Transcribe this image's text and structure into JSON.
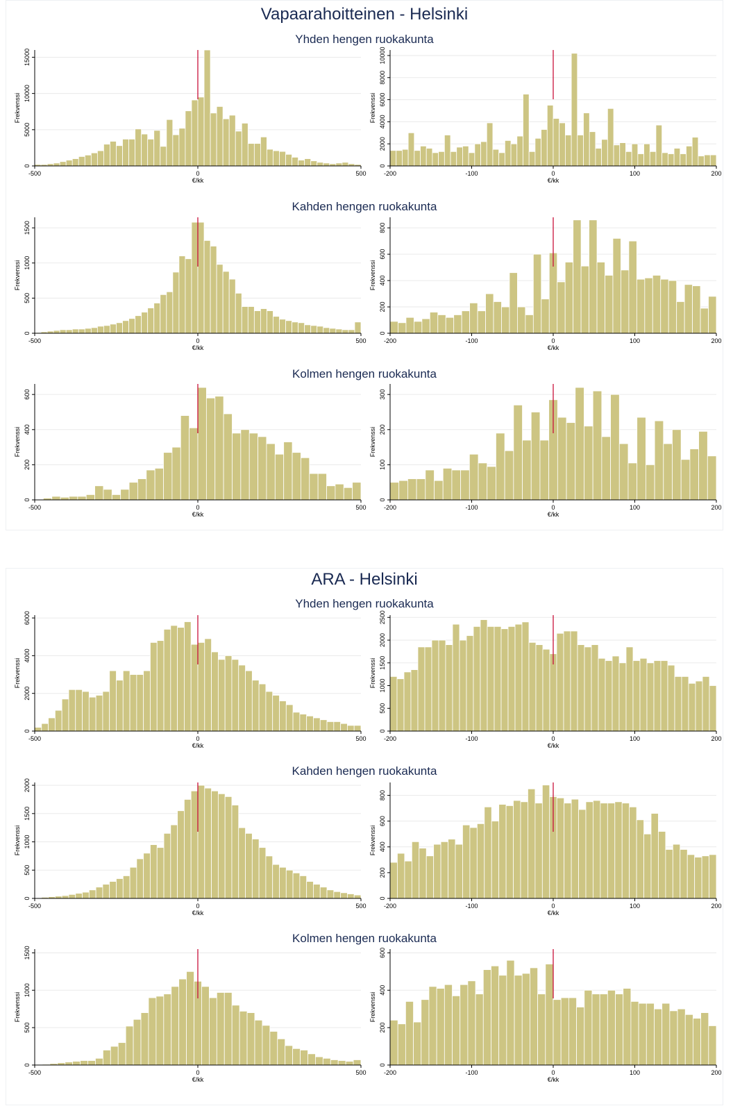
{
  "colors": {
    "bar_fill": "#cdc583",
    "bar_stroke": "#ffffff",
    "marker": "#c8103a",
    "grid": "#eaeaea",
    "title": "#1a2a52"
  },
  "panels": [
    {
      "title": "Vapaarahoitteinen - Helsinki",
      "rows": [
        {
          "title": "Yhden hengen ruokakunta"
        },
        {
          "title": "Kahden hengen ruokakunta"
        },
        {
          "title": "Kolmen hengen ruokakunta"
        }
      ]
    },
    {
      "title": "ARA - Helsinki",
      "rows": [
        {
          "title": "Yhden hengen ruokakunta"
        },
        {
          "title": "Kahden hengen ruokakunta"
        },
        {
          "title": "Kolmen hengen ruokakunta"
        }
      ]
    }
  ],
  "chart_data": [
    {
      "panel": 0,
      "row": 0,
      "col": 0,
      "type": "bar",
      "xlabel": "€/kk",
      "ylabel": "Frekvenssi",
      "xlim": [
        -500,
        500
      ],
      "ylim": [
        0,
        16000
      ],
      "xticks": [
        -500,
        0,
        500
      ],
      "yticks": [
        0,
        5000,
        10000,
        15000
      ],
      "marker_x": 0,
      "values": [
        200,
        200,
        300,
        400,
        600,
        800,
        1000,
        1300,
        1500,
        1800,
        2100,
        3000,
        3400,
        2800,
        3700,
        3700,
        5100,
        4400,
        3700,
        4900,
        2700,
        6400,
        4300,
        5200,
        7600,
        9100,
        9500,
        16000,
        7300,
        8200,
        6500,
        7000,
        4800,
        5900,
        3100,
        3100,
        4000,
        2300,
        2100,
        2000,
        1600,
        1200,
        800,
        1000,
        700,
        500,
        400,
        300,
        400,
        500,
        300,
        200
      ]
    },
    {
      "panel": 0,
      "row": 0,
      "col": 1,
      "type": "bar",
      "xlabel": "€/kk",
      "ylabel": "Frekvenssi",
      "xlim": [
        -200,
        200
      ],
      "ylim": [
        0,
        10500
      ],
      "xticks": [
        -200,
        -100,
        0,
        100,
        200
      ],
      "yticks": [
        0,
        2000,
        4000,
        6000,
        8000,
        10000
      ],
      "marker_x": 0,
      "values": [
        1400,
        1400,
        1500,
        3000,
        1400,
        1800,
        1600,
        1200,
        1300,
        2800,
        1300,
        1700,
        1800,
        1200,
        2000,
        2200,
        3900,
        1500,
        1200,
        2300,
        2000,
        2700,
        6500,
        1300,
        2500,
        3300,
        5500,
        4300,
        3900,
        2800,
        10200,
        2800,
        4800,
        3100,
        1600,
        2400,
        5200,
        1900,
        2100,
        1300,
        2000,
        1100,
        2000,
        1300,
        3700,
        1200,
        1100,
        1600,
        1100,
        1800,
        2600,
        900,
        1000,
        1000
      ]
    },
    {
      "panel": 0,
      "row": 1,
      "col": 0,
      "type": "bar",
      "xlabel": "€/kk",
      "ylabel": "Frekvenssi",
      "xlim": [
        -500,
        500
      ],
      "ylim": [
        0,
        1650
      ],
      "xticks": [
        -500,
        0,
        500
      ],
      "yticks": [
        0,
        500,
        1000,
        1500
      ],
      "marker_x": 0,
      "values": [
        10,
        20,
        30,
        40,
        50,
        50,
        60,
        60,
        70,
        80,
        100,
        110,
        130,
        150,
        180,
        210,
        250,
        300,
        360,
        430,
        550,
        590,
        870,
        1100,
        1060,
        1580,
        1580,
        1320,
        1240,
        980,
        880,
        770,
        570,
        380,
        380,
        320,
        350,
        320,
        240,
        200,
        180,
        160,
        150,
        120,
        110,
        100,
        80,
        70,
        60,
        50,
        50,
        160
      ]
    },
    {
      "panel": 0,
      "row": 1,
      "col": 1,
      "type": "bar",
      "xlabel": "€/kk",
      "ylabel": "Frekvenssi",
      "xlim": [
        -200,
        200
      ],
      "ylim": [
        0,
        880
      ],
      "xticks": [
        -200,
        -100,
        0,
        100,
        200
      ],
      "yticks": [
        0,
        200,
        400,
        600,
        800
      ],
      "marker_x": 0,
      "values": [
        90,
        80,
        120,
        90,
        110,
        160,
        140,
        120,
        140,
        170,
        230,
        170,
        300,
        240,
        200,
        460,
        200,
        140,
        600,
        260,
        610,
        390,
        540,
        860,
        510,
        860,
        540,
        440,
        720,
        480,
        700,
        410,
        420,
        440,
        410,
        400,
        240,
        370,
        360,
        190,
        280
      ]
    },
    {
      "panel": 0,
      "row": 2,
      "col": 0,
      "type": "bar",
      "xlabel": "€/kk",
      "ylabel": "Frekvenssi",
      "xlim": [
        -500,
        500
      ],
      "ylim": [
        0,
        660
      ],
      "xticks": [
        -500,
        0,
        500
      ],
      "yticks": [
        0,
        200,
        400,
        600
      ],
      "marker_x": 0,
      "values": [
        0,
        10,
        20,
        15,
        20,
        20,
        30,
        80,
        60,
        30,
        60,
        100,
        120,
        170,
        180,
        270,
        300,
        480,
        410,
        640,
        580,
        590,
        490,
        380,
        400,
        380,
        360,
        320,
        260,
        330,
        270,
        240,
        150,
        150,
        80,
        90,
        70,
        100
      ]
    },
    {
      "panel": 0,
      "row": 2,
      "col": 1,
      "type": "bar",
      "xlabel": "€/kk",
      "ylabel": "Frekvenssi",
      "xlim": [
        -200,
        200
      ],
      "ylim": [
        0,
        330
      ],
      "xticks": [
        -200,
        -100,
        0,
        100,
        200
      ],
      "yticks": [
        0,
        100,
        200,
        300
      ],
      "marker_x": 0,
      "values": [
        50,
        55,
        60,
        60,
        85,
        55,
        90,
        85,
        85,
        130,
        105,
        95,
        190,
        140,
        270,
        170,
        250,
        170,
        285,
        235,
        220,
        320,
        210,
        310,
        180,
        300,
        160,
        105,
        235,
        100,
        225,
        160,
        200,
        115,
        145,
        195,
        125
      ]
    },
    {
      "panel": 1,
      "row": 0,
      "col": 0,
      "type": "bar",
      "xlabel": "€/kk",
      "ylabel": "Frekvenssi",
      "xlim": [
        -500,
        500
      ],
      "ylim": [
        0,
        6150
      ],
      "xticks": [
        -500,
        0,
        500
      ],
      "yticks": [
        0,
        2000,
        4000,
        6000
      ],
      "marker_x": 0,
      "values": [
        200,
        400,
        700,
        1100,
        1700,
        2200,
        2200,
        2100,
        1800,
        1900,
        2100,
        3200,
        2700,
        3200,
        3000,
        3000,
        3200,
        4700,
        4800,
        5400,
        5600,
        5500,
        5800,
        4600,
        4700,
        4900,
        4200,
        3800,
        4000,
        3800,
        3500,
        3200,
        2700,
        2500,
        2100,
        1900,
        1600,
        1400,
        1000,
        900,
        800,
        700,
        600,
        500,
        500,
        400,
        300,
        300
      ]
    },
    {
      "panel": 1,
      "row": 0,
      "col": 1,
      "type": "bar",
      "xlabel": "€/kk",
      "ylabel": "Frekvenssi",
      "xlim": [
        -200,
        200
      ],
      "ylim": [
        0,
        2550
      ],
      "xticks": [
        -200,
        -100,
        0,
        100,
        200
      ],
      "yticks": [
        0,
        500,
        1000,
        1500,
        2000,
        2500
      ],
      "marker_x": 0,
      "values": [
        1200,
        1150,
        1300,
        1350,
        1850,
        1850,
        2000,
        2000,
        1900,
        2350,
        2000,
        2100,
        2300,
        2450,
        2300,
        2300,
        2250,
        2300,
        2350,
        2400,
        1950,
        1900,
        1800,
        1700,
        2150,
        2200,
        2200,
        1900,
        1850,
        1900,
        1600,
        1550,
        1650,
        1500,
        1850,
        1550,
        1600,
        1500,
        1550,
        1550,
        1450,
        1200,
        1200,
        1050,
        1100,
        1200,
        1000
      ]
    },
    {
      "panel": 1,
      "row": 1,
      "col": 0,
      "type": "bar",
      "xlabel": "€/kk",
      "ylabel": "Frekvenssi",
      "xlim": [
        -500,
        500
      ],
      "ylim": [
        0,
        2050
      ],
      "xticks": [
        -500,
        0,
        500
      ],
      "yticks": [
        0,
        500,
        1000,
        1500,
        2000
      ],
      "marker_x": 0,
      "values": [
        10,
        20,
        30,
        40,
        50,
        70,
        90,
        110,
        150,
        200,
        250,
        300,
        350,
        400,
        550,
        700,
        800,
        950,
        900,
        1150,
        1300,
        1550,
        1750,
        1900,
        2000,
        1950,
        1900,
        1850,
        1800,
        1650,
        1250,
        1150,
        1050,
        900,
        750,
        600,
        550,
        500,
        450,
        400,
        300,
        250,
        200,
        150,
        120,
        100,
        80,
        60
      ]
    },
    {
      "panel": 1,
      "row": 1,
      "col": 1,
      "type": "bar",
      "xlabel": "€/kk",
      "ylabel": "Frekvenssi",
      "xlim": [
        -200,
        200
      ],
      "ylim": [
        0,
        900
      ],
      "xticks": [
        -200,
        -100,
        0,
        100,
        200
      ],
      "yticks": [
        0,
        200,
        400,
        600,
        800
      ],
      "marker_x": 0,
      "values": [
        280,
        350,
        290,
        440,
        390,
        330,
        420,
        440,
        460,
        420,
        570,
        550,
        580,
        710,
        600,
        730,
        720,
        760,
        750,
        850,
        740,
        880,
        790,
        780,
        740,
        770,
        690,
        750,
        760,
        740,
        740,
        750,
        740,
        710,
        610,
        500,
        660,
        520,
        380,
        420,
        380,
        340,
        320,
        330,
        340
      ]
    },
    {
      "panel": 1,
      "row": 2,
      "col": 0,
      "type": "bar",
      "xlabel": "€/kk",
      "ylabel": "Frekvenssi",
      "xlim": [
        -500,
        500
      ],
      "ylim": [
        0,
        1550
      ],
      "xticks": [
        -500,
        0,
        500
      ],
      "yticks": [
        0,
        500,
        1000,
        1500
      ],
      "marker_x": 0,
      "values": [
        5,
        10,
        20,
        30,
        40,
        50,
        60,
        60,
        90,
        200,
        250,
        300,
        520,
        610,
        700,
        900,
        920,
        950,
        1050,
        1150,
        1250,
        1120,
        1050,
        900,
        970,
        970,
        800,
        720,
        700,
        600,
        530,
        450,
        350,
        260,
        220,
        200,
        150,
        110,
        90,
        70,
        60,
        50,
        70
      ]
    },
    {
      "panel": 1,
      "row": 2,
      "col": 1,
      "type": "bar",
      "xlabel": "€/kk",
      "ylabel": "Frekvenssi",
      "xlim": [
        -200,
        200
      ],
      "ylim": [
        0,
        620
      ],
      "xticks": [
        -200,
        -100,
        0,
        100,
        200
      ],
      "yticks": [
        0,
        200,
        400,
        600
      ],
      "marker_x": 0,
      "values": [
        240,
        220,
        340,
        230,
        350,
        420,
        410,
        430,
        370,
        430,
        450,
        380,
        510,
        530,
        480,
        560,
        480,
        490,
        520,
        380,
        540,
        350,
        360,
        360,
        310,
        400,
        380,
        380,
        400,
        380,
        410,
        340,
        330,
        330,
        300,
        330,
        290,
        300,
        270,
        250,
        280,
        210
      ]
    }
  ]
}
